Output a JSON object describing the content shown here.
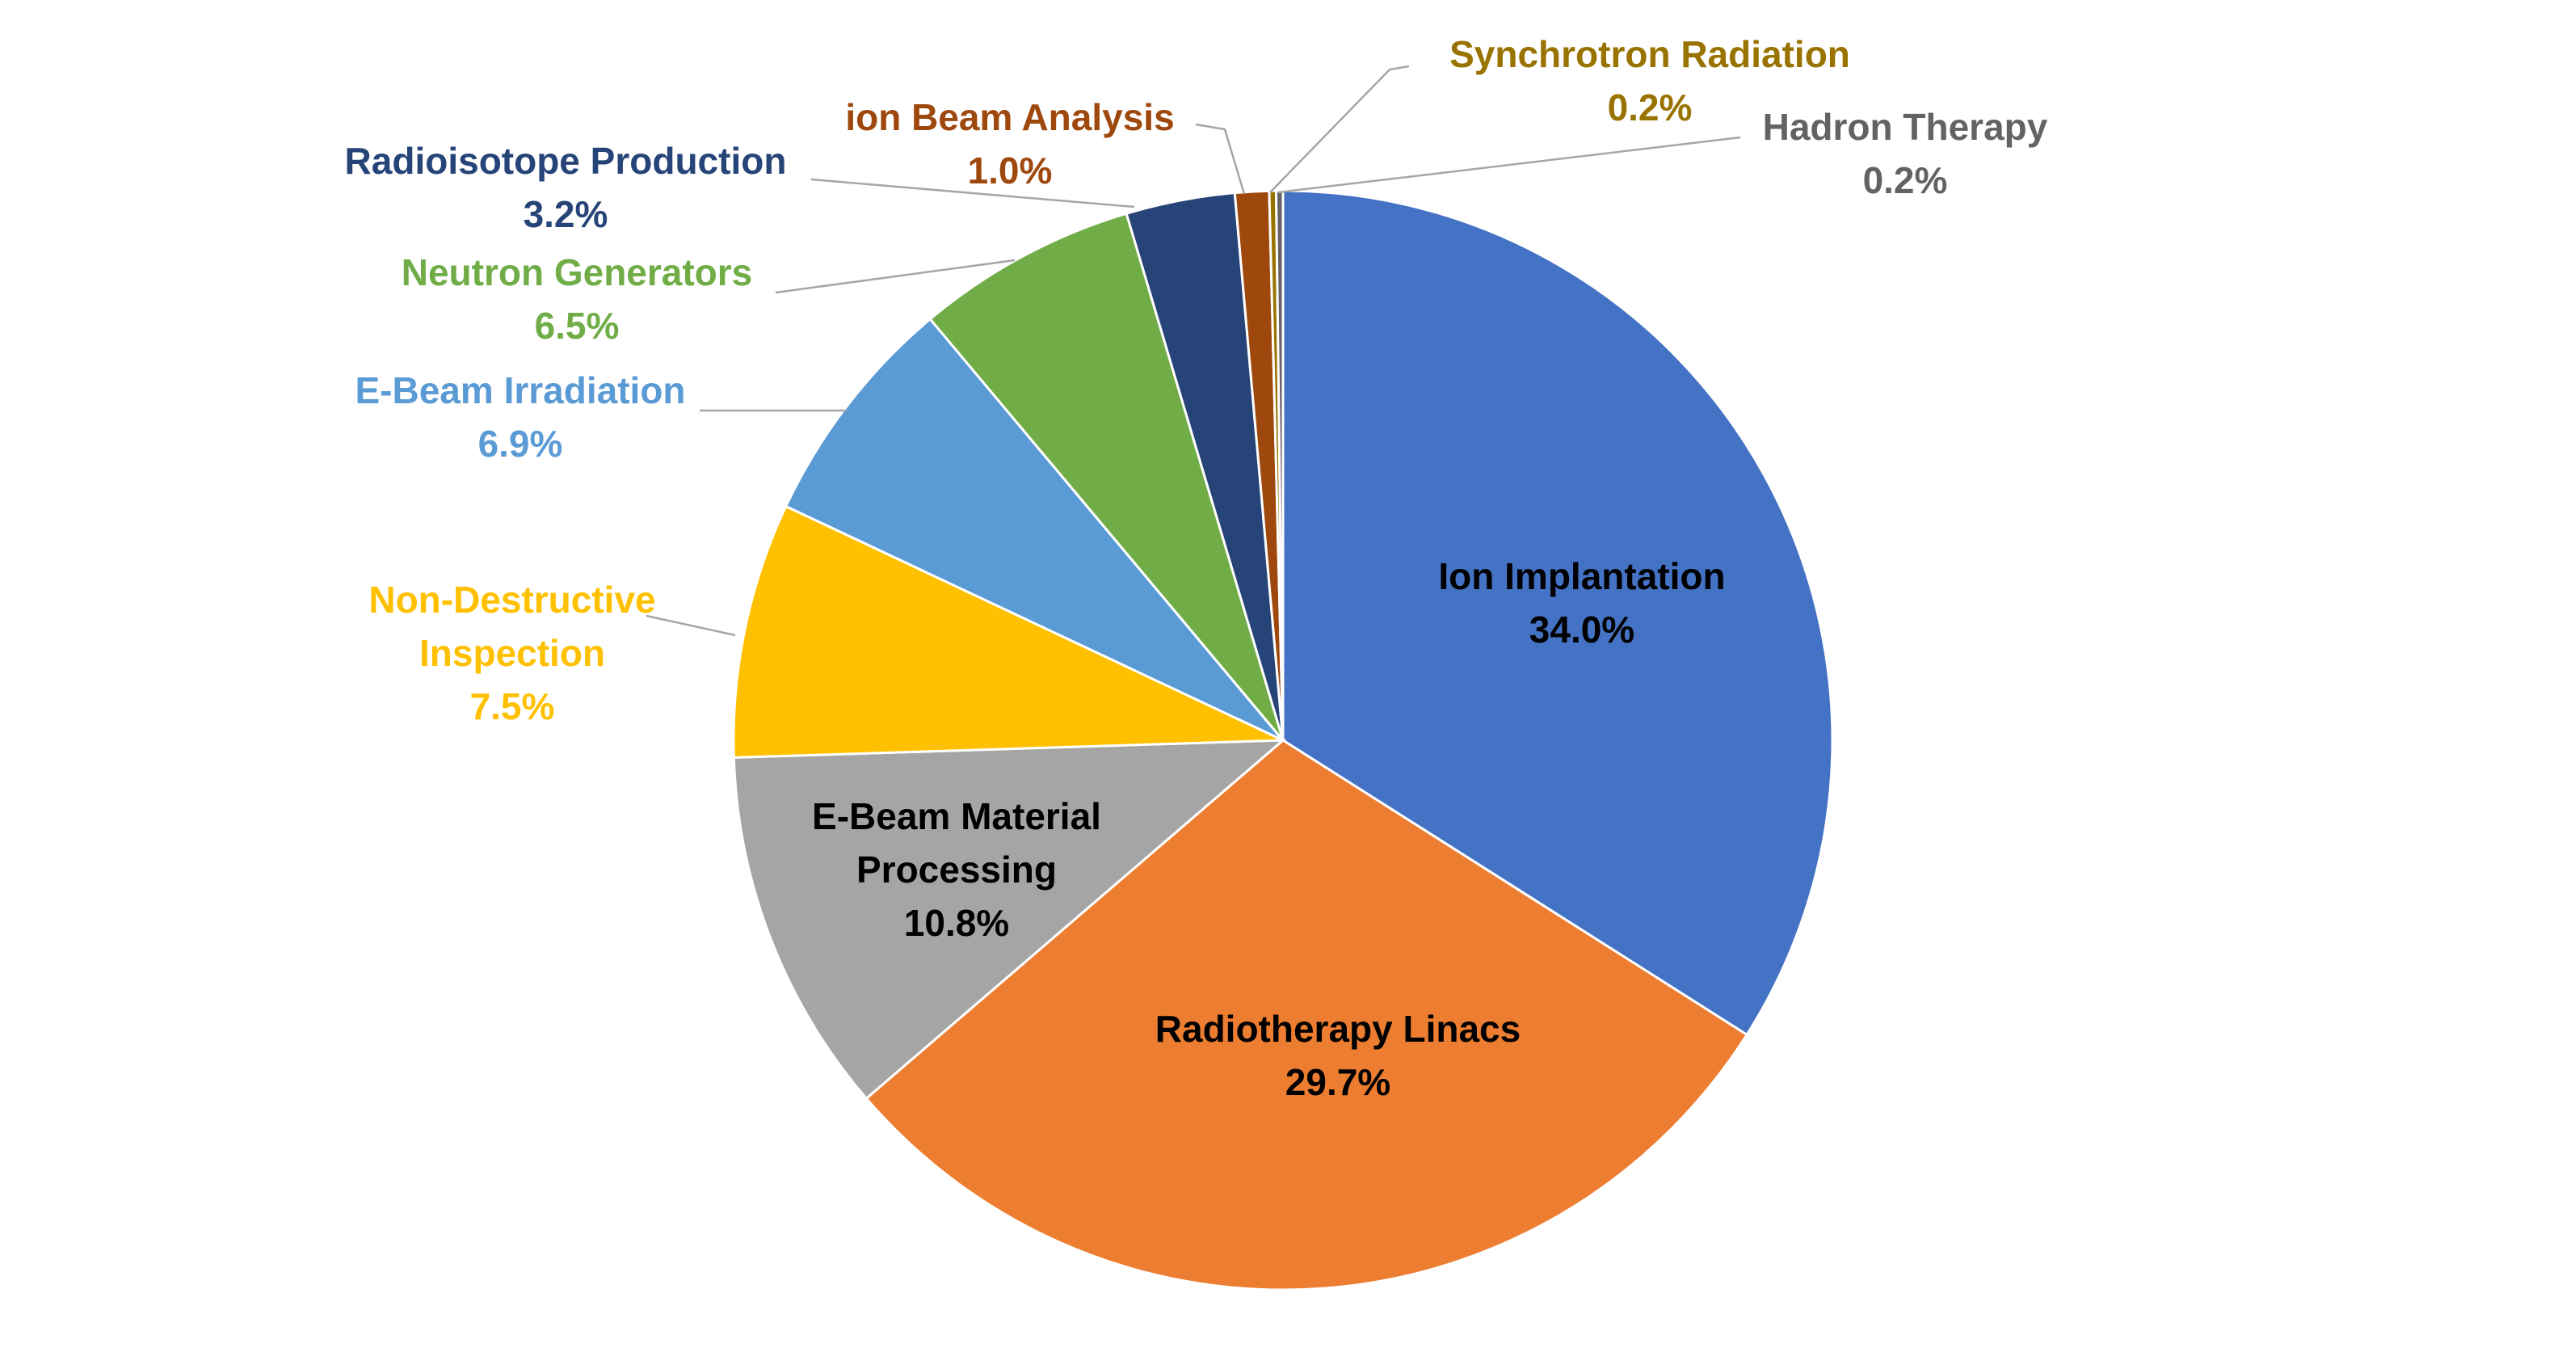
{
  "chart_data": {
    "type": "pie",
    "title": "",
    "slices": [
      {
        "name": "Ion Implantation",
        "value": 34.0,
        "label": "34.0%",
        "color": "#4472C4",
        "text_color": "#000000",
        "lines": [
          "Ion Implantation"
        ]
      },
      {
        "name": "Radiotherapy Linacs",
        "value": 29.7,
        "label": "29.7%",
        "color": "#ED7D31",
        "text_color": "#000000",
        "lines": [
          "Radiotherapy Linacs"
        ]
      },
      {
        "name": "E-Beam Material Processing",
        "value": 10.8,
        "label": "10.8%",
        "color": "#A5A5A5",
        "text_color": "#000000",
        "lines": [
          "E-Beam Material",
          "Processing"
        ]
      },
      {
        "name": "Non-Destructive Inspection",
        "value": 7.5,
        "label": "7.5%",
        "color": "#FFC000",
        "text_color": "#FFC000",
        "lines": [
          "Non-Destructive",
          "Inspection"
        ]
      },
      {
        "name": "E-Beam Irradiation",
        "value": 6.9,
        "label": "6.9%",
        "color": "#5B9BD5",
        "text_color": "#5B9BD5",
        "lines": [
          "E-Beam Irradiation"
        ]
      },
      {
        "name": "Neutron Generators",
        "value": 6.5,
        "label": "6.5%",
        "color": "#70AD47",
        "text_color": "#70AD47",
        "lines": [
          "Neutron Generators"
        ]
      },
      {
        "name": "Radioisotope Production",
        "value": 3.2,
        "label": "3.2%",
        "color": "#264478",
        "text_color": "#264478",
        "lines": [
          "Radioisotope Production"
        ]
      },
      {
        "name": "ion Beam Analysis",
        "value": 1.0,
        "label": "1.0%",
        "color": "#9E480E",
        "text_color": "#9E480E",
        "lines": [
          "ion Beam Analysis"
        ]
      },
      {
        "name": "Synchrotron Radiation",
        "value": 0.2,
        "label": "0.2%",
        "color": "#997300",
        "text_color": "#997300",
        "lines": [
          "Synchrotron Radiation"
        ]
      },
      {
        "name": "Hadron Therapy",
        "value": 0.2,
        "label": "0.2%",
        "color": "#636363",
        "text_color": "#636363",
        "lines": [
          "Hadron Therapy"
        ]
      }
    ],
    "legend": "none",
    "data_labels": "name-and-percent"
  }
}
